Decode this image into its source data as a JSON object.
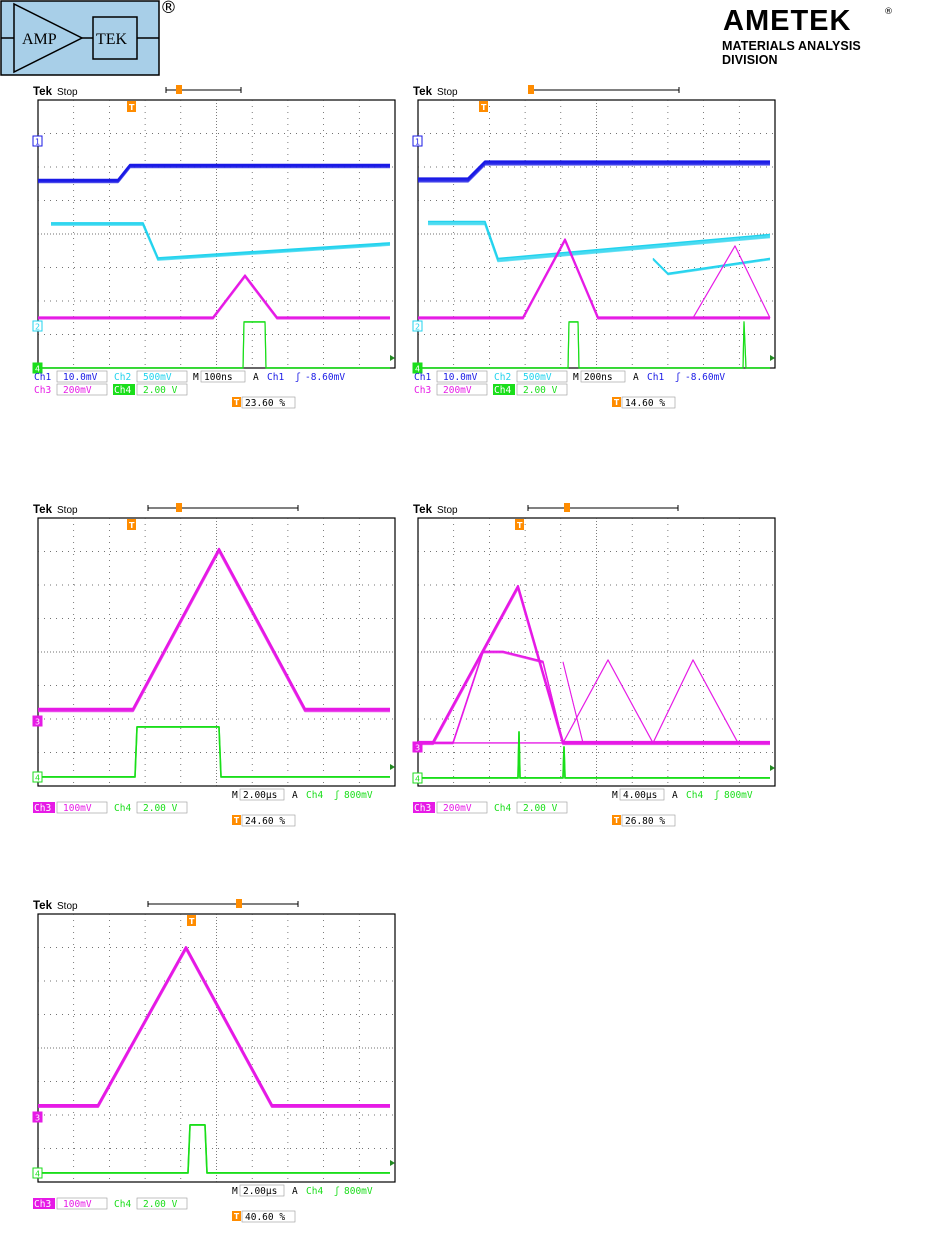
{
  "header": {
    "amptek_logo": {
      "left_text": "AMP",
      "right_text": "TEK",
      "registered": "®"
    },
    "ametek_logo": {
      "wordmark": "AMETEK",
      "registered": "®",
      "division": "MATERIALS ANALYSIS DIVISION"
    }
  },
  "colors": {
    "ch1": "#1a1ae6",
    "ch2": "#22d3ee",
    "ch3": "#e61ae6",
    "ch4": "#1ade1a",
    "trigger": "#ff8c00",
    "grid": "#444444"
  },
  "scopes": [
    {
      "id": "scope-1",
      "brand": "Tek",
      "status": "Stop",
      "channel_markers": [
        "1",
        "2",
        "4"
      ],
      "readout_row1": [
        {
          "ch": "Ch1",
          "val": "10.0mV"
        },
        {
          "ch": "Ch2",
          "val": "500mV"
        },
        {
          "label": "M",
          "val": "100ns"
        },
        {
          "label": "A",
          "ch": "Ch1",
          "slope": "ʃ",
          "val": "-8.60mV"
        }
      ],
      "readout_row2": [
        {
          "ch": "Ch3",
          "val": "200mV"
        },
        {
          "ch": "Ch4",
          "val": "2.00 V"
        }
      ],
      "trigger_position": "23.60 %"
    },
    {
      "id": "scope-2",
      "brand": "Tek",
      "status": "Stop",
      "channel_markers": [
        "1",
        "2",
        "4"
      ],
      "readout_row1": [
        {
          "ch": "Ch1",
          "val": "10.0mV"
        },
        {
          "ch": "Ch2",
          "val": "500mV"
        },
        {
          "label": "M",
          "val": "200ns"
        },
        {
          "label": "A",
          "ch": "Ch1",
          "slope": "ʃ",
          "val": "-8.60mV"
        }
      ],
      "readout_row2": [
        {
          "ch": "Ch3",
          "val": "200mV"
        },
        {
          "ch": "Ch4",
          "val": "2.00 V"
        }
      ],
      "trigger_position": "14.60 %"
    },
    {
      "id": "scope-3",
      "brand": "Tek",
      "status": "Stop",
      "channel_markers": [
        "3",
        "4"
      ],
      "readout_row1": [
        {
          "label": "M",
          "val": "2.00µs"
        },
        {
          "label": "A",
          "ch": "Ch4",
          "slope": "ʃ",
          "val": "800mV"
        }
      ],
      "readout_row2": [
        {
          "ch": "Ch3",
          "val": "100mV"
        },
        {
          "ch": "Ch4",
          "val": "2.00 V"
        }
      ],
      "trigger_position": "24.60 %"
    },
    {
      "id": "scope-4",
      "brand": "Tek",
      "status": "Stop",
      "channel_markers": [
        "3",
        "4"
      ],
      "readout_row1": [
        {
          "label": "M",
          "val": "4.00µs"
        },
        {
          "label": "A",
          "ch": "Ch4",
          "slope": "ʃ",
          "val": "800mV"
        }
      ],
      "readout_row2": [
        {
          "ch": "Ch3",
          "val": "200mV"
        },
        {
          "ch": "Ch4",
          "val": "2.00 V"
        }
      ],
      "trigger_position": "26.80 %"
    },
    {
      "id": "scope-5",
      "brand": "Tek",
      "status": "Stop",
      "channel_markers": [
        "3",
        "4"
      ],
      "readout_row1": [
        {
          "label": "M",
          "val": "2.00µs"
        },
        {
          "label": "A",
          "ch": "Ch4",
          "slope": "ʃ",
          "val": "800mV"
        }
      ],
      "readout_row2": [
        {
          "ch": "Ch3",
          "val": "100mV"
        },
        {
          "ch": "Ch4",
          "val": "2.00 V"
        }
      ],
      "trigger_position": "40.60 %"
    }
  ]
}
